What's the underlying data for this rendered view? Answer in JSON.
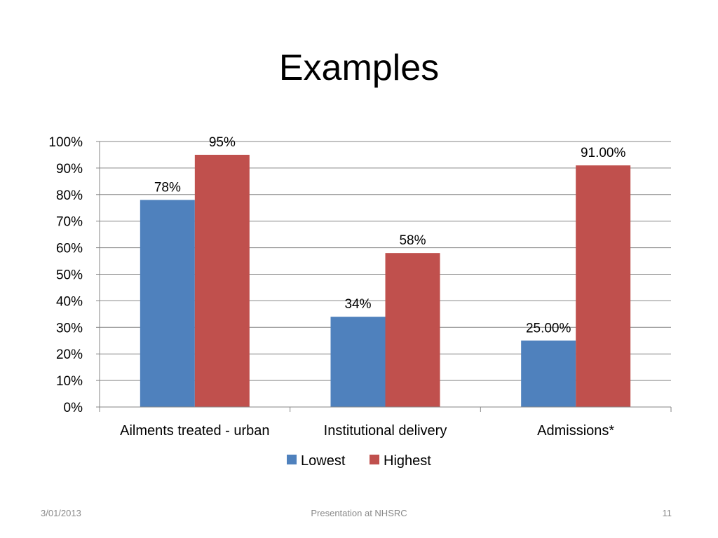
{
  "slide": {
    "title": "Examples"
  },
  "footer": {
    "date": "3/01/2013",
    "center": "Presentation at NHSRC",
    "page": "11"
  },
  "colors": {
    "Lowest": "#4F81BD",
    "Highest": "#C0504D",
    "gridline": "#868686"
  },
  "chart_data": {
    "type": "bar",
    "categories": [
      "Ailments treated - urban",
      "Institutional delivery",
      "Admissions*"
    ],
    "series": [
      {
        "name": "Lowest",
        "values": [
          0.78,
          0.34,
          0.25
        ],
        "labels": [
          "78%",
          "34%",
          "25.00%"
        ]
      },
      {
        "name": "Highest",
        "values": [
          0.95,
          0.58,
          0.91
        ],
        "labels": [
          "95%",
          "58%",
          "91.00%"
        ]
      }
    ],
    "ylim": [
      0,
      1
    ],
    "yticks": [
      "0%",
      "10%",
      "20%",
      "30%",
      "40%",
      "50%",
      "60%",
      "70%",
      "80%",
      "90%",
      "100%"
    ],
    "grid": true,
    "legend": "bottom"
  }
}
